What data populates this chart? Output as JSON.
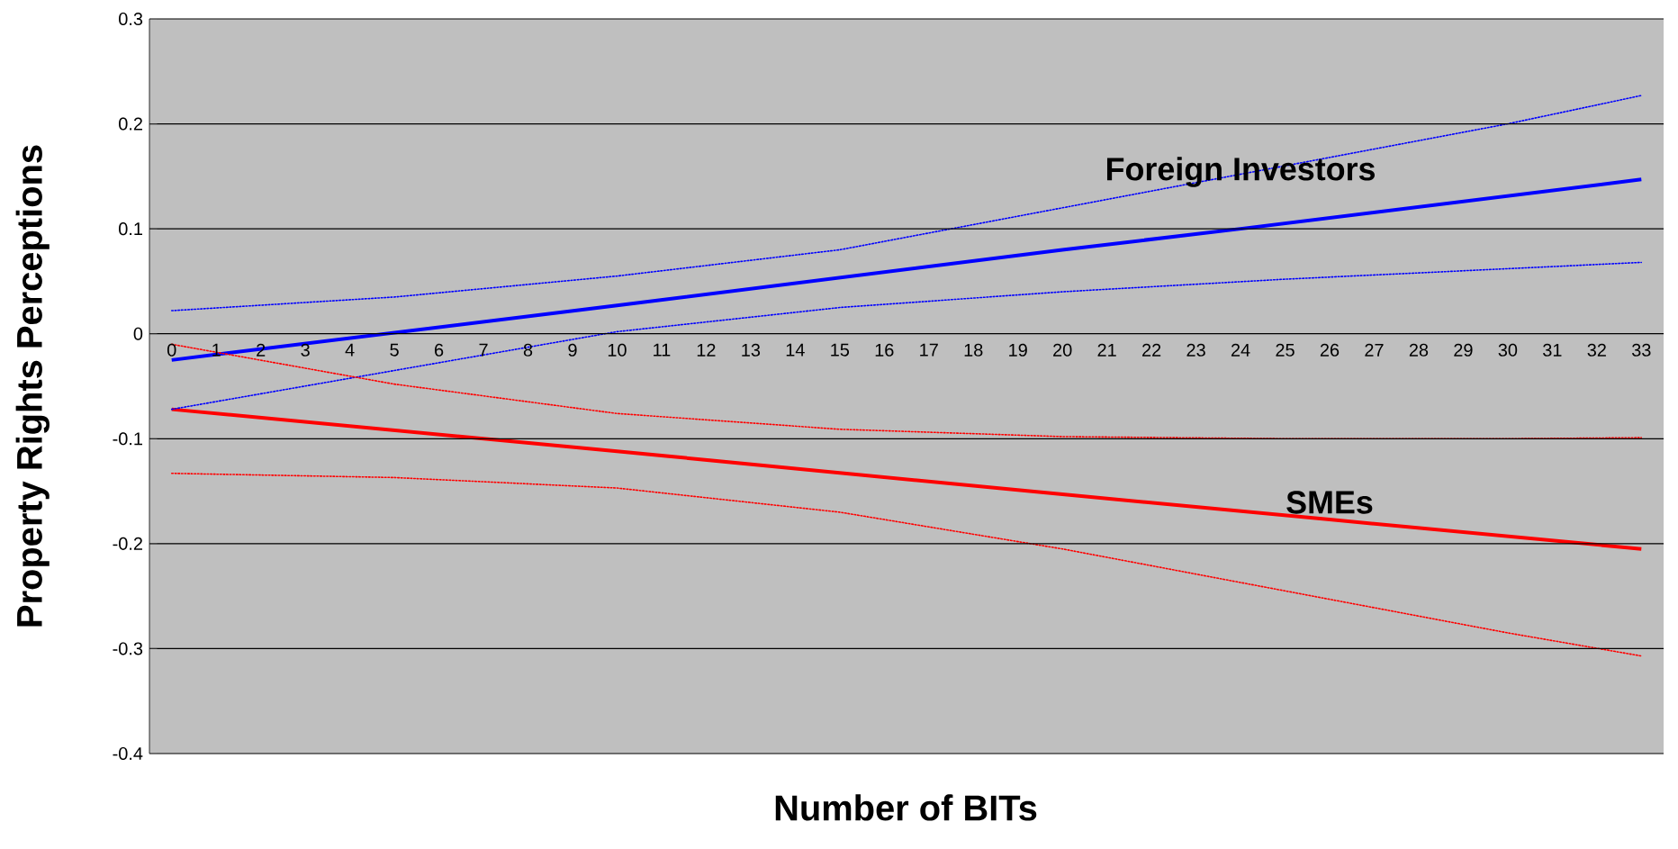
{
  "chart_data": {
    "type": "line",
    "xlabel": "Number of BITs",
    "ylabel": "Property Rights Perceptions",
    "xlim": [
      -0.5,
      33.5
    ],
    "xticks": [
      0,
      1,
      2,
      3,
      4,
      5,
      6,
      7,
      8,
      9,
      10,
      11,
      12,
      13,
      14,
      15,
      16,
      17,
      18,
      19,
      20,
      21,
      22,
      23,
      24,
      25,
      26,
      27,
      28,
      29,
      30,
      31,
      32,
      33
    ],
    "ylim": [
      -0.4,
      0.3
    ],
    "yticks": [
      -0.4,
      -0.3,
      -0.2,
      -0.1,
      0,
      0.1,
      0.2,
      0.3
    ],
    "grid": "y",
    "series": [
      {
        "name": "Foreign Investors",
        "color": "#0000ff",
        "x": [
          0,
          10,
          20,
          24,
          33
        ],
        "values": [
          -0.025,
          0.027,
          0.08,
          0.1,
          0.147
        ]
      },
      {
        "color": "#0000ff",
        "line_style": "dotted",
        "x": [
          0,
          5,
          10,
          15,
          20,
          25,
          30,
          33
        ],
        "values": [
          -0.072,
          -0.035,
          0.002,
          0.025,
          0.04,
          0.052,
          0.062,
          0.068
        ]
      },
      {
        "color": "#0000ff",
        "line_style": "dotted",
        "x": [
          0,
          5,
          10,
          15,
          20,
          25,
          30,
          33
        ],
        "values": [
          0.022,
          0.035,
          0.055,
          0.08,
          0.12,
          0.16,
          0.2,
          0.227
        ]
      },
      {
        "name": "SMEs",
        "color": "#ff0000",
        "x": [
          0,
          10,
          20,
          26,
          33
        ],
        "values": [
          -0.072,
          -0.112,
          -0.153,
          -0.177,
          -0.205
        ]
      },
      {
        "color": "#ff0000",
        "line_style": "dotted",
        "x": [
          0,
          5,
          10,
          15,
          20,
          25,
          30,
          33
        ],
        "values": [
          -0.133,
          -0.137,
          -0.147,
          -0.17,
          -0.205,
          -0.245,
          -0.285,
          -0.307
        ]
      },
      {
        "color": "#ff0000",
        "line_style": "dotted",
        "x": [
          0,
          5,
          10,
          15,
          20,
          25,
          30,
          33
        ],
        "values": [
          -0.01,
          -0.048,
          -0.076,
          -0.091,
          -0.098,
          -0.1,
          -0.1,
          -0.099
        ]
      }
    ]
  }
}
